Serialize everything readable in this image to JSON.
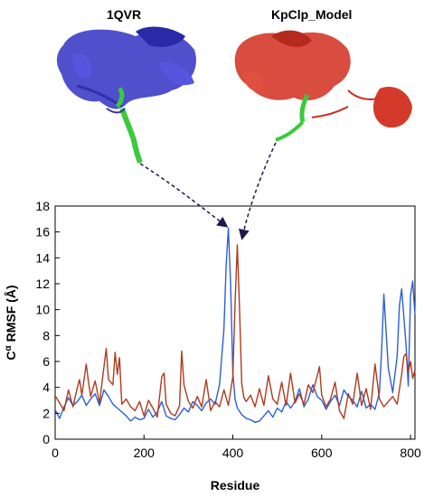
{
  "figure": {
    "left_structure_label": "1QVR",
    "right_structure_label": "KpClp_Model"
  },
  "chart_data": {
    "type": "line",
    "title": "",
    "xlabel": "Residue",
    "ylabel_base": "C",
    "ylabel_sup": "α",
    "ylabel_rest": " RMSF (Å)",
    "xlim": [
      0,
      810
    ],
    "ylim": [
      0,
      18
    ],
    "xticks": [
      0,
      200,
      400,
      600,
      800
    ],
    "yticks": [
      0,
      2,
      4,
      6,
      8,
      10,
      12,
      14,
      16,
      18
    ],
    "grid": false,
    "legend": "none",
    "series": [
      {
        "color": "#2b5fd9",
        "x": [
          1,
          10,
          20,
          30,
          40,
          50,
          60,
          70,
          80,
          90,
          100,
          110,
          120,
          130,
          140,
          150,
          160,
          170,
          180,
          190,
          200,
          210,
          220,
          230,
          240,
          250,
          260,
          270,
          280,
          290,
          300,
          310,
          320,
          330,
          340,
          350,
          360,
          370,
          380,
          385,
          390,
          395,
          400,
          405,
          410,
          420,
          430,
          440,
          450,
          460,
          470,
          480,
          490,
          500,
          510,
          520,
          530,
          540,
          550,
          560,
          570,
          580,
          590,
          600,
          610,
          620,
          630,
          640,
          650,
          660,
          670,
          680,
          690,
          700,
          710,
          720,
          730,
          735,
          740,
          750,
          760,
          770,
          775,
          780,
          790,
          795,
          800,
          805,
          810
        ],
        "y": [
          2.2,
          1.6,
          2.5,
          3.2,
          2.6,
          2.9,
          3.4,
          2.6,
          3.1,
          3.5,
          2.6,
          3.8,
          3.3,
          2.7,
          2.4,
          2.1,
          1.8,
          1.4,
          1.7,
          1.5,
          1.6,
          2.3,
          1.7,
          2.1,
          2.9,
          1.8,
          1.6,
          1.5,
          1.9,
          2.4,
          2.1,
          2.9,
          2.6,
          2.2,
          2.8,
          3.1,
          2.7,
          4.2,
          8.5,
          13.5,
          16.3,
          12.0,
          5.2,
          3.1,
          2.4,
          1.9,
          1.6,
          1.5,
          1.3,
          1.4,
          1.8,
          2.2,
          1.7,
          2.4,
          2.1,
          2.9,
          2.4,
          2.9,
          3.9,
          2.5,
          3.1,
          4.2,
          3.3,
          3.0,
          2.3,
          2.9,
          3.4,
          2.6,
          3.8,
          3.3,
          3.0,
          2.5,
          3.7,
          2.4,
          2.7,
          2.3,
          3.6,
          6.8,
          11.2,
          5.5,
          3.6,
          6.4,
          10.3,
          11.6,
          7.2,
          4.1,
          11.1,
          12.2,
          9.6
        ]
      },
      {
        "color": "#b03a1e",
        "x": [
          1,
          10,
          20,
          30,
          40,
          50,
          55,
          60,
          70,
          75,
          80,
          90,
          100,
          110,
          115,
          120,
          130,
          135,
          140,
          145,
          150,
          160,
          170,
          180,
          190,
          200,
          210,
          220,
          230,
          240,
          245,
          250,
          260,
          270,
          280,
          285,
          290,
          300,
          310,
          320,
          330,
          340,
          350,
          360,
          370,
          380,
          390,
          400,
          405,
          410,
          415,
          420,
          425,
          430,
          440,
          450,
          460,
          470,
          480,
          490,
          500,
          510,
          520,
          530,
          540,
          550,
          560,
          570,
          580,
          590,
          595,
          600,
          610,
          620,
          630,
          640,
          650,
          660,
          670,
          680,
          690,
          700,
          710,
          720,
          730,
          740,
          750,
          760,
          770,
          780,
          785,
          790,
          795,
          800,
          805,
          810
        ],
        "y": [
          3.3,
          2.8,
          2.2,
          3.8,
          2.5,
          4.0,
          4.6,
          3.4,
          5.8,
          4.4,
          3.3,
          4.5,
          2.8,
          5.6,
          7.0,
          4.6,
          4.2,
          6.7,
          5.0,
          6.3,
          2.7,
          3.1,
          2.5,
          2.2,
          2.9,
          1.8,
          3.0,
          2.4,
          1.7,
          4.8,
          5.1,
          2.7,
          2.0,
          1.8,
          2.6,
          6.8,
          4.2,
          2.9,
          2.4,
          3.3,
          2.5,
          4.6,
          2.2,
          2.9,
          2.5,
          3.8,
          2.6,
          4.8,
          10.5,
          15.0,
          10.2,
          4.3,
          3.2,
          2.9,
          3.4,
          2.5,
          3.9,
          2.6,
          4.9,
          3.1,
          2.7,
          4.4,
          2.6,
          5.1,
          2.8,
          3.5,
          2.7,
          4.2,
          3.6,
          4.9,
          5.6,
          3.4,
          2.5,
          3.1,
          4.4,
          2.2,
          1.6,
          3.5,
          2.7,
          5.1,
          2.6,
          3.9,
          2.3,
          5.8,
          3.1,
          2.5,
          2.9,
          3.3,
          2.7,
          5.0,
          6.4,
          6.6,
          5.2,
          6.0,
          4.7,
          5.3
        ]
      }
    ]
  }
}
